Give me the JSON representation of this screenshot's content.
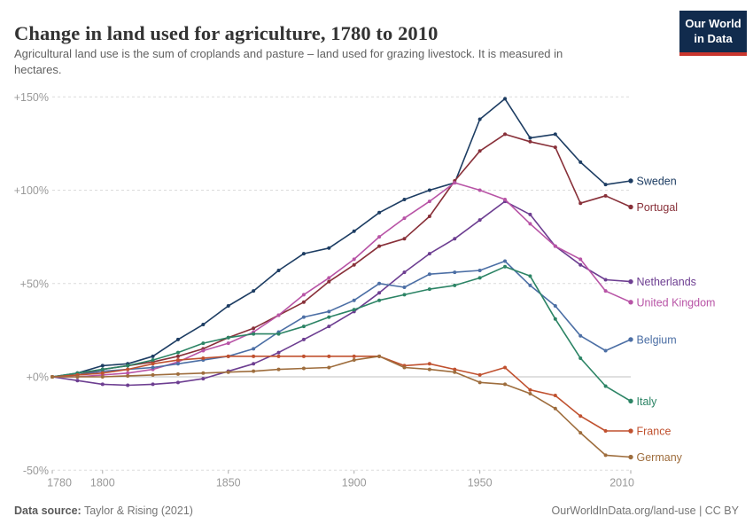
{
  "header": {
    "title": "Change in land used for agriculture, 1780 to 2010",
    "subtitle_line1": "Agricultural land use is the sum of croplands and pasture – land used for grazing livestock. It is measured in",
    "subtitle_line2": "hectares.",
    "logo": {
      "line1": "Our World",
      "line2": "in Data"
    }
  },
  "footer": {
    "source_label": "Data source:",
    "source_value": "Taylor & Rising (2021)",
    "credit": "OurWorldInData.org/land-use | CC BY"
  },
  "colors": {
    "logo_bg": "#112B4D",
    "logo_bar": "#C9352D",
    "grid": "#dcdcdc",
    "zero_line": "#c0c0c0",
    "tick_text": "#999999",
    "title_text": "#333333",
    "subtitle_text": "#616161"
  },
  "chart_data": {
    "type": "line",
    "title": "Change in land used for agriculture, 1780 to 2010",
    "xlabel": "",
    "ylabel": "",
    "xlim": [
      1780,
      2010
    ],
    "ylim": [
      -50,
      150
    ],
    "grid": true,
    "legend_position": "right-of-line-end",
    "x": [
      1780,
      1790,
      1800,
      1810,
      1820,
      1830,
      1840,
      1850,
      1860,
      1870,
      1880,
      1890,
      1900,
      1910,
      1920,
      1930,
      1940,
      1950,
      1960,
      1970,
      1980,
      1990,
      2000,
      2010
    ],
    "x_ticks": [
      1780,
      1800,
      1850,
      1900,
      1950,
      2010
    ],
    "y_ticks": [
      {
        "value": 150,
        "label": "+150%"
      },
      {
        "value": 100,
        "label": "+100%"
      },
      {
        "value": 50,
        "label": "+50%"
      },
      {
        "value": 0,
        "label": "+0%"
      },
      {
        "value": -50,
        "label": "-50%"
      }
    ],
    "series": [
      {
        "name": "Sweden",
        "color": "#1D3D63",
        "values": [
          0,
          2,
          6,
          7,
          11,
          20,
          28,
          38,
          46,
          57,
          66,
          69,
          78,
          88,
          95,
          100,
          104,
          138,
          149,
          128,
          130,
          115,
          103,
          105
        ]
      },
      {
        "name": "Portugal",
        "color": "#883039",
        "values": [
          0,
          1,
          4,
          6,
          8,
          11,
          15,
          21,
          26,
          33,
          40,
          51,
          60,
          70,
          74,
          86,
          105,
          121,
          130,
          126,
          123,
          93,
          97,
          91
        ]
      },
      {
        "name": "Netherlands",
        "color": "#6D3E91",
        "values": [
          0,
          -2,
          -4,
          -4.5,
          -4,
          -3,
          -1,
          3,
          7,
          13,
          20,
          27,
          35,
          45,
          56,
          66,
          74,
          84,
          94,
          87,
          70,
          60,
          52,
          51
        ]
      },
      {
        "name": "United Kingdom",
        "color": "#B854A6",
        "values": [
          0,
          0,
          1,
          2,
          4,
          8,
          14,
          18,
          24,
          33,
          44,
          53,
          63,
          75,
          85,
          94,
          104,
          100,
          95,
          82,
          70,
          63,
          46,
          40
        ]
      },
      {
        "name": "Belgium",
        "color": "#4C6FA5",
        "values": [
          0,
          1,
          3,
          4,
          5,
          7,
          9,
          11,
          15,
          24,
          32,
          35,
          41,
          50,
          48,
          55,
          56,
          57,
          62,
          49,
          38,
          22,
          14,
          20
        ]
      },
      {
        "name": "Italy",
        "color": "#2C8465",
        "values": [
          0,
          2,
          4,
          6,
          9,
          13,
          18,
          21,
          23,
          23,
          27,
          32,
          36,
          41,
          44,
          47,
          49,
          53,
          59,
          54,
          31,
          10,
          -5,
          -13
        ]
      },
      {
        "name": "France",
        "color": "#C0512F",
        "values": [
          0,
          1,
          2,
          4,
          7,
          9,
          10,
          11,
          11,
          11,
          11,
          11,
          11,
          11,
          6,
          7,
          4,
          1,
          5,
          -7,
          -10,
          -21,
          -29,
          -29
        ]
      },
      {
        "name": "Germany",
        "color": "#9E6D3D",
        "values": [
          0,
          0,
          0,
          0.5,
          1,
          1.5,
          2,
          2.5,
          3,
          4,
          4.5,
          5,
          9,
          11,
          5,
          4,
          2.5,
          -3,
          -4,
          -9,
          -17,
          -30,
          -42,
          -43
        ]
      }
    ]
  }
}
